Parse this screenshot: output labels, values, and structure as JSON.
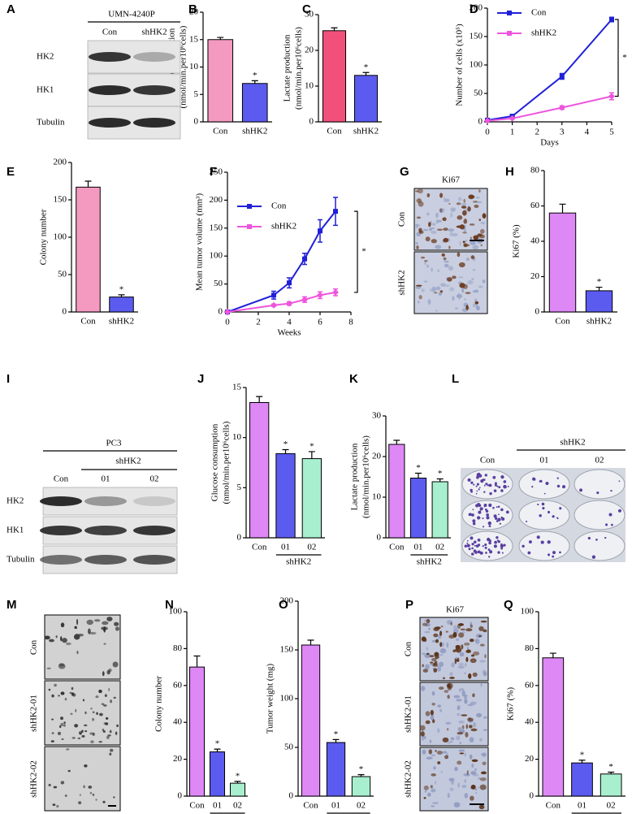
{
  "chart_data": [
    {
      "panel": "B",
      "type": "bar",
      "ylabel": [
        "Glucose consumption",
        "(nmol/min.per10⁶cells)"
      ],
      "categories": [
        "Con",
        "shHK2"
      ],
      "values": [
        15,
        7
      ],
      "errors": [
        0.4,
        0.5
      ],
      "significance": [
        null,
        "*"
      ],
      "colors": [
        "#f49ac1",
        "#5b5bf0"
      ],
      "ylim": [
        0,
        20
      ],
      "yticks": [
        0,
        5,
        10,
        15,
        20
      ]
    },
    {
      "panel": "C",
      "type": "bar",
      "ylabel": [
        "Lactate production",
        "(nmol/min.per10⁶cells)"
      ],
      "categories": [
        "Con",
        "shHK2"
      ],
      "values": [
        25.5,
        13
      ],
      "errors": [
        0.8,
        0.8
      ],
      "significance": [
        null,
        "*"
      ],
      "colors": [
        "#f0507a",
        "#5b5bf0"
      ],
      "ylim": [
        0,
        30
      ],
      "yticks": [
        0,
        10,
        20,
        30
      ]
    },
    {
      "panel": "D",
      "type": "line",
      "ylabel": [
        "Number of cells (x10⁵)"
      ],
      "xlabel": "Days",
      "x": [
        0,
        1,
        3,
        5
      ],
      "series": [
        {
          "name": "Con",
          "color": "#2020d8",
          "values": [
            3,
            10,
            80,
            180
          ],
          "errors": [
            0.5,
            1,
            5,
            4
          ]
        },
        {
          "name": "shHK2",
          "color": "#ee55dd",
          "values": [
            2,
            6,
            25,
            45
          ],
          "errors": [
            0.5,
            1,
            3,
            6
          ]
        }
      ],
      "annotation": "*",
      "legend": "upper left",
      "xlim": [
        0,
        5
      ],
      "xticks": [
        0,
        1,
        2,
        3,
        4,
        5
      ],
      "ylim": [
        0,
        200
      ],
      "yticks": [
        0,
        50,
        100,
        150,
        200
      ]
    },
    {
      "panel": "E",
      "type": "bar",
      "ylabel": [
        "Colony number"
      ],
      "categories": [
        "Con",
        "shHK2"
      ],
      "values": [
        167,
        20
      ],
      "errors": [
        8,
        3
      ],
      "significance": [
        null,
        "*"
      ],
      "colors": [
        "#f49ac1",
        "#5b5bf0"
      ],
      "ylim": [
        0,
        200
      ],
      "yticks": [
        0,
        50,
        100,
        150,
        200
      ]
    },
    {
      "panel": "F",
      "type": "line",
      "ylabel": [
        "Mean tumor volume (mm³)"
      ],
      "xlabel": "Weeks",
      "x": [
        0,
        3,
        4,
        5,
        6,
        7
      ],
      "series": [
        {
          "name": "Con",
          "color": "#2020d8",
          "values": [
            0,
            30,
            52,
            95,
            145,
            180
          ],
          "errors": [
            0,
            7,
            9,
            10,
            20,
            25
          ]
        },
        {
          "name": "shHK2",
          "color": "#ee55dd",
          "values": [
            0,
            12,
            15,
            22,
            30,
            35
          ],
          "errors": [
            0,
            2,
            3,
            5,
            6,
            6
          ]
        }
      ],
      "annotation": "*",
      "legend": "upper left",
      "xlim": [
        0,
        8
      ],
      "xticks": [
        0,
        2,
        4,
        6,
        8
      ],
      "ylim": [
        0,
        250
      ],
      "yticks": [
        0,
        50,
        100,
        150,
        200,
        250
      ]
    },
    {
      "panel": "H",
      "type": "bar",
      "ylabel": [
        "Ki67 (%)"
      ],
      "categories": [
        "Con",
        "shHK2"
      ],
      "values": [
        56,
        12
      ],
      "errors": [
        5,
        2
      ],
      "significance": [
        null,
        "*"
      ],
      "colors": [
        "#dd88f5",
        "#5b5bf0"
      ],
      "ylim": [
        0,
        80
      ],
      "yticks": [
        0,
        20,
        40,
        60,
        80
      ]
    },
    {
      "panel": "J",
      "type": "bar",
      "ylabel": [
        "Glucose consumption",
        "(nmol/min.per10⁶cells)"
      ],
      "categories": [
        "Con",
        "01",
        "02"
      ],
      "group": "shHK2",
      "values": [
        13.5,
        8.4,
        7.9
      ],
      "errors": [
        0.6,
        0.4,
        0.7
      ],
      "significance": [
        null,
        "*",
        "*"
      ],
      "colors": [
        "#dd88f5",
        "#5b5bf0",
        "#a8efcf"
      ],
      "ylim": [
        0,
        15
      ],
      "yticks": [
        0,
        5,
        10,
        15
      ]
    },
    {
      "panel": "K",
      "type": "bar",
      "ylabel": [
        "Lactate production",
        "(nmol/min.per10⁶cells)"
      ],
      "categories": [
        "Con",
        "01",
        "02"
      ],
      "group": "shHK2",
      "values": [
        23,
        14.7,
        13.8
      ],
      "errors": [
        1,
        1.2,
        0.7
      ],
      "significance": [
        null,
        "*",
        "*"
      ],
      "colors": [
        "#dd88f5",
        "#5b5bf0",
        "#a8efcf"
      ],
      "ylim": [
        0,
        30
      ],
      "yticks": [
        0,
        10,
        20,
        30
      ]
    },
    {
      "panel": "N",
      "type": "bar",
      "ylabel": [
        "Colony number"
      ],
      "categories": [
        "Con",
        "01",
        "02"
      ],
      "group": "shHK2",
      "values": [
        70,
        24,
        7
      ],
      "errors": [
        6,
        1.5,
        1
      ],
      "significance": [
        null,
        "*",
        "*"
      ],
      "colors": [
        "#dd88f5",
        "#5b5bf0",
        "#a8efcf"
      ],
      "ylim": [
        0,
        100
      ],
      "yticks": [
        0,
        20,
        40,
        60,
        80,
        100
      ]
    },
    {
      "panel": "O",
      "type": "bar",
      "ylabel": [
        "Tumor weight (mg)"
      ],
      "categories": [
        "Con",
        "01",
        "02"
      ],
      "group": "shHK2",
      "values": [
        155,
        55,
        20
      ],
      "errors": [
        5,
        3,
        2
      ],
      "significance": [
        null,
        "*",
        "*"
      ],
      "colors": [
        "#dd88f5",
        "#5b5bf0",
        "#a8efcf"
      ],
      "ylim": [
        0,
        200
      ],
      "yticks": [
        0,
        50,
        100,
        150,
        200
      ]
    },
    {
      "panel": "Q",
      "type": "bar",
      "ylabel": [
        "Ki67 (%)"
      ],
      "categories": [
        "Con",
        "01",
        "02"
      ],
      "group": "shHK2",
      "values": [
        75,
        18,
        12
      ],
      "errors": [
        2.5,
        1.5,
        1
      ],
      "significance": [
        null,
        "*",
        "*"
      ],
      "colors": [
        "#dd88f5",
        "#5b5bf0",
        "#a8efcf"
      ],
      "ylim": [
        0,
        100
      ],
      "yticks": [
        0,
        20,
        40,
        60,
        80,
        100
      ]
    }
  ],
  "images": [
    {
      "panel": "A",
      "title": "UMN-4240P",
      "columns": [
        "Con",
        "shHK2"
      ],
      "rows": [
        "HK2",
        "HK1",
        "Tubulin"
      ]
    },
    {
      "panel": "G",
      "title": "Ki67",
      "rows": [
        "Con",
        "shHK2"
      ]
    },
    {
      "panel": "I",
      "title": "PC3",
      "group": "shHK2",
      "columns": [
        "Con",
        "01",
        "02"
      ],
      "rows": [
        "HK2",
        "HK1",
        "Tubulin"
      ]
    },
    {
      "panel": "L",
      "group": "shHK2",
      "columns": [
        "Con",
        "01",
        "02"
      ]
    },
    {
      "panel": "M",
      "rows": [
        "Con",
        "shHK2-01",
        "shHK2-02"
      ]
    },
    {
      "panel": "P",
      "title": "Ki67",
      "rows": [
        "Con",
        "shHK2-01",
        "shHK2-02"
      ]
    }
  ]
}
